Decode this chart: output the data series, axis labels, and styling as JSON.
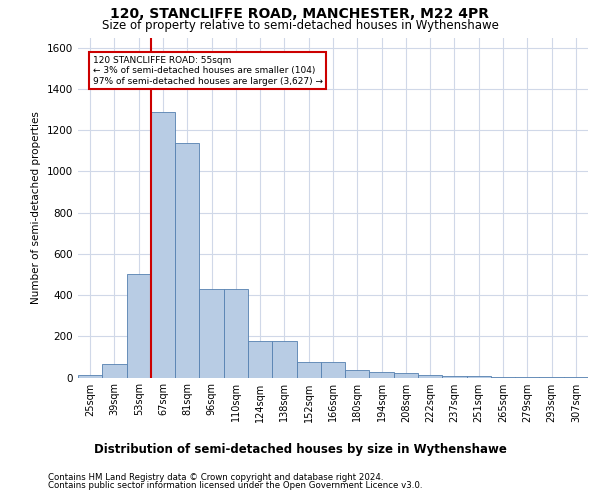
{
  "title": "120, STANCLIFFE ROAD, MANCHESTER, M22 4PR",
  "subtitle": "Size of property relative to semi-detached houses in Wythenshawe",
  "xlabel_bottom": "Distribution of semi-detached houses by size in Wythenshawe",
  "ylabel": "Number of semi-detached properties",
  "footnote1": "Contains HM Land Registry data © Crown copyright and database right 2024.",
  "footnote2": "Contains public sector information licensed under the Open Government Licence v3.0.",
  "bar_color": "#b8cce4",
  "bar_edge_color": "#5580b0",
  "annotation_box_color": "#cc0000",
  "vline_color": "#cc0000",
  "annotation_text_line1": "120 STANCLIFFE ROAD: 55sqm",
  "annotation_text_line2": "← 3% of semi-detached houses are smaller (104)",
  "annotation_text_line3": "97% of semi-detached houses are larger (3,627) →",
  "categories": [
    "25sqm",
    "39sqm",
    "53sqm",
    "67sqm",
    "81sqm",
    "96sqm",
    "110sqm",
    "124sqm",
    "138sqm",
    "152sqm",
    "166sqm",
    "180sqm",
    "194sqm",
    "208sqm",
    "222sqm",
    "237sqm",
    "251sqm",
    "265sqm",
    "279sqm",
    "293sqm",
    "307sqm"
  ],
  "values": [
    10,
    65,
    500,
    1290,
    1140,
    430,
    430,
    175,
    175,
    75,
    75,
    35,
    25,
    20,
    10,
    8,
    5,
    3,
    2,
    1,
    1
  ],
  "vline_x": 2.5,
  "ylim": [
    0,
    1650
  ],
  "yticks": [
    0,
    200,
    400,
    600,
    800,
    1000,
    1200,
    1400,
    1600
  ],
  "background_color": "#ffffff",
  "grid_color": "#d0d8e8"
}
